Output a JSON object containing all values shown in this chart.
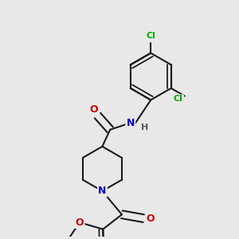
{
  "bg_color": "#e8e8e8",
  "bond_color": "#1a1a1a",
  "atom_colors": {
    "N": "#0000cc",
    "O": "#cc0000",
    "Cl": "#00aa00",
    "H": "#555555"
  },
  "bond_width": 1.5,
  "dbo": 0.012
}
